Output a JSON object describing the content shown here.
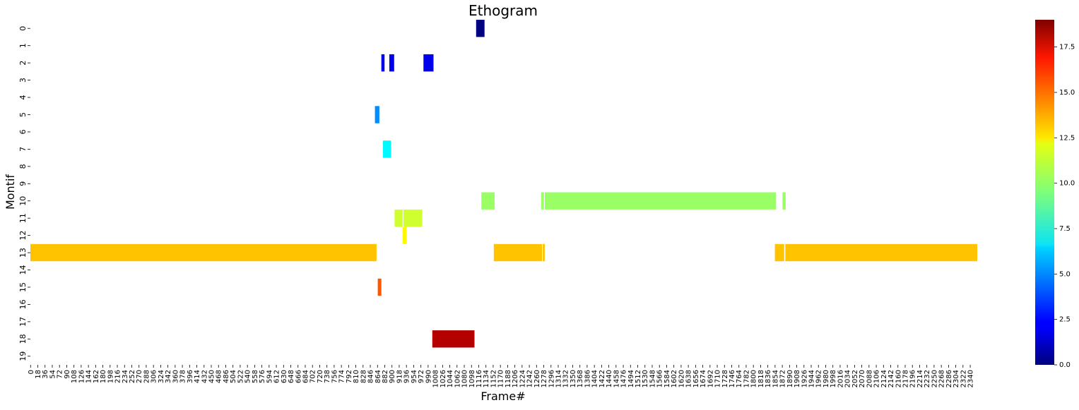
{
  "chart_data": {
    "type": "heatmap",
    "title": "Ethogram",
    "xlabel": "Frame#",
    "ylabel": "Montif",
    "x_range": [
      0,
      2358
    ],
    "x_tick_step": 18,
    "y_categories": [
      "0",
      "1",
      "2",
      "3",
      "4",
      "5",
      "6",
      "7",
      "8",
      "9",
      "10",
      "11",
      "12",
      "13",
      "14",
      "15",
      "16",
      "17",
      "18",
      "19"
    ],
    "segments": [
      {
        "motif": 0,
        "start": 1110,
        "end": 1131,
        "value": 0
      },
      {
        "motif": 2,
        "start": 874,
        "end": 882,
        "value": 2
      },
      {
        "motif": 2,
        "start": 894,
        "end": 906,
        "value": 2
      },
      {
        "motif": 2,
        "start": 979,
        "end": 1004,
        "value": 2
      },
      {
        "motif": 5,
        "start": 858,
        "end": 869,
        "value": 5
      },
      {
        "motif": 7,
        "start": 878,
        "end": 898,
        "value": 7
      },
      {
        "motif": 10,
        "start": 1123,
        "end": 1156,
        "value": 10
      },
      {
        "motif": 10,
        "start": 1272,
        "end": 1279,
        "value": 10
      },
      {
        "motif": 10,
        "start": 1281,
        "end": 1857,
        "value": 10
      },
      {
        "motif": 10,
        "start": 1873,
        "end": 1881,
        "value": 10
      },
      {
        "motif": 11,
        "start": 907,
        "end": 927,
        "value": 11
      },
      {
        "motif": 11,
        "start": 929,
        "end": 976,
        "value": 11
      },
      {
        "motif": 12,
        "start": 927,
        "end": 937,
        "value": 12
      },
      {
        "motif": 13,
        "start": 0,
        "end": 862,
        "value": 13
      },
      {
        "motif": 13,
        "start": 1154,
        "end": 1274,
        "value": 13
      },
      {
        "motif": 13,
        "start": 1276,
        "end": 1281,
        "value": 13
      },
      {
        "motif": 13,
        "start": 1854,
        "end": 1877,
        "value": 13
      },
      {
        "motif": 13,
        "start": 1880,
        "end": 2358,
        "value": 13
      },
      {
        "motif": 15,
        "start": 865,
        "end": 874,
        "value": 15
      },
      {
        "motif": 18,
        "start": 1001,
        "end": 1106,
        "value": 18
      }
    ],
    "colorbar": {
      "colormap": "jet",
      "range": [
        0,
        19
      ],
      "ticks": [
        "0.0",
        "2.5",
        "5.0",
        "7.5",
        "10.0",
        "12.5",
        "15.0",
        "17.5"
      ]
    }
  }
}
